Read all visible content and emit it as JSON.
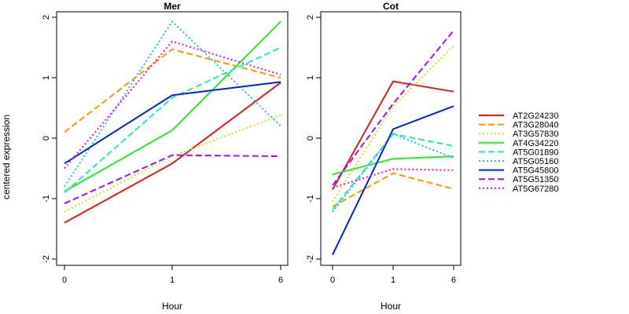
{
  "ylabel": "centered expression",
  "chart_data": [
    {
      "type": "line",
      "title": "Mer",
      "xlabel": "Hour",
      "ylabel": "centered expression",
      "categories": [
        "0",
        "1",
        "6"
      ],
      "ylim": [
        -2.1,
        2.1
      ],
      "yticks": [
        "-2",
        "-1",
        "0",
        "1",
        "2"
      ],
      "grid": false,
      "series": [
        {
          "name": "AT2G24230",
          "values": [
            -1.4,
            -0.42,
            0.92
          ]
        },
        {
          "name": "AT3G28040",
          "values": [
            0.1,
            1.47,
            1.0
          ]
        },
        {
          "name": "AT3G57830",
          "values": [
            -1.22,
            -0.3,
            0.38
          ]
        },
        {
          "name": "AT4G34220",
          "values": [
            -0.88,
            0.13,
            1.93
          ]
        },
        {
          "name": "AT5G01890",
          "values": [
            -0.9,
            0.67,
            1.5
          ]
        },
        {
          "name": "AT5G05160",
          "values": [
            -0.8,
            1.93,
            0.2
          ]
        },
        {
          "name": "AT5G45800",
          "values": [
            -0.42,
            0.71,
            0.93
          ]
        },
        {
          "name": "AT5G51350",
          "values": [
            -1.08,
            -0.28,
            -0.3
          ]
        },
        {
          "name": "AT5G67280",
          "values": [
            -0.5,
            1.6,
            1.05
          ]
        }
      ]
    },
    {
      "type": "line",
      "title": "Cot",
      "xlabel": "Hour",
      "categories": [
        "0",
        "1",
        "6"
      ],
      "ylim": [
        -2.1,
        2.1
      ],
      "yticks": [
        "-2",
        "-1",
        "0",
        "1",
        "2"
      ],
      "grid": false,
      "series": [
        {
          "name": "AT2G24230",
          "values": [
            -0.85,
            0.94,
            0.77
          ]
        },
        {
          "name": "AT3G28040",
          "values": [
            -1.13,
            -0.58,
            -0.84
          ]
        },
        {
          "name": "AT3G57830",
          "values": [
            -1.05,
            0.53,
            1.53
          ]
        },
        {
          "name": "AT4G34220",
          "values": [
            -0.6,
            -0.34,
            -0.3
          ]
        },
        {
          "name": "AT5G01890",
          "values": [
            -1.18,
            0.07,
            -0.13
          ]
        },
        {
          "name": "AT5G05160",
          "values": [
            -1.22,
            0.07,
            -0.33
          ]
        },
        {
          "name": "AT5G45800",
          "values": [
            -1.93,
            0.15,
            0.53
          ]
        },
        {
          "name": "AT5G51350",
          "values": [
            -0.78,
            0.57,
            1.78
          ]
        },
        {
          "name": "AT5G67280",
          "values": [
            -0.82,
            -0.51,
            -0.53
          ]
        }
      ]
    }
  ],
  "legend": {
    "placement": "right",
    "items": [
      {
        "name": "AT2G24230",
        "color": "#e41a1c",
        "dash": "solid"
      },
      {
        "name": "AT3G28040",
        "color": "#ff9900",
        "dash": "dashed"
      },
      {
        "name": "AT3G57830",
        "color": "#bbee22",
        "dash": "dotted"
      },
      {
        "name": "AT4G34220",
        "color": "#22ee22",
        "dash": "solid"
      },
      {
        "name": "AT5G01890",
        "color": "#22eebb",
        "dash": "dashed"
      },
      {
        "name": "AT5G05160",
        "color": "#22bbee",
        "dash": "dotted"
      },
      {
        "name": "AT5G45800",
        "color": "#0022dd",
        "dash": "solid"
      },
      {
        "name": "AT5G51350",
        "color": "#aa11ee",
        "dash": "dashed"
      },
      {
        "name": "AT5G67280",
        "color": "#ff11bb",
        "dash": "dotted"
      }
    ]
  }
}
